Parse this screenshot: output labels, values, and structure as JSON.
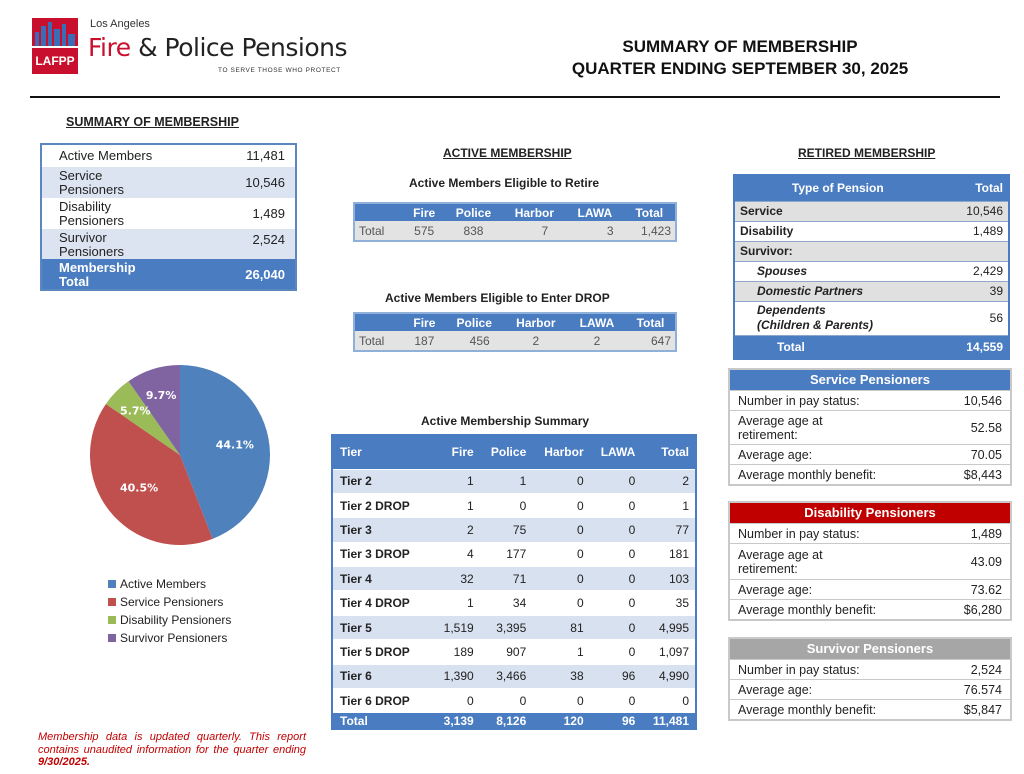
{
  "header": {
    "logo_abbr": "LAFPP",
    "logo_city": "Los Angeles",
    "logo_fire": "Fire",
    "logo_amp": "&",
    "logo_police": "Police Pensions",
    "logo_tagline": "TO SERVE THOSE WHO PROTECT",
    "title_line1": "SUMMARY OF MEMBERSHIP",
    "title_line2": "QUARTER ENDING SEPTEMBER 30, 2025"
  },
  "summary": {
    "title": "SUMMARY OF MEMBERSHIP",
    "rows": [
      {
        "label": "Active Members",
        "value": "11,481"
      },
      {
        "label": "Service Pensioners",
        "value": "10,546"
      },
      {
        "label": "Disability Pensioners",
        "value": "1,489"
      },
      {
        "label": "Survivor Pensioners",
        "value": "2,524"
      }
    ],
    "total_label": "Membership Total",
    "total_value": "26,040"
  },
  "chart_data": {
    "type": "pie",
    "title": "",
    "categories": [
      "Active Members",
      "Service Pensioners",
      "Disability Pensioners",
      "Survivor Pensioners"
    ],
    "values": [
      44.1,
      40.5,
      5.7,
      9.7
    ],
    "labels": [
      "44.1%",
      "40.5%",
      "5.7%",
      "9.7%"
    ],
    "colors": [
      "#4f81bd",
      "#c0504d",
      "#9bbb59",
      "#8064a2"
    ],
    "legend": "bottom-left"
  },
  "active": {
    "title": "ACTIVE MEMBERSHIP",
    "retire": {
      "subtitle": "Active Members Eligible to Retire",
      "headers": [
        "",
        "Fire",
        "Police",
        "Harbor",
        "LAWA",
        "Total"
      ],
      "row": [
        "Total",
        "575",
        "838",
        "7",
        "3",
        "1,423"
      ]
    },
    "drop": {
      "subtitle": "Active Members Eligible to Enter DROP",
      "headers": [
        "",
        "Fire",
        "Police",
        "Harbor",
        "LAWA",
        "Total"
      ],
      "row": [
        "Total",
        "187",
        "456",
        "2",
        "2",
        "647"
      ]
    },
    "summary": {
      "subtitle": "Active Membership Summary",
      "headers": [
        "Tier",
        "Fire",
        "Police",
        "Harbor",
        "LAWA",
        "Total"
      ],
      "rows": [
        [
          "Tier 2",
          "1",
          "1",
          "0",
          "0",
          "2"
        ],
        [
          "Tier 2 DROP",
          "1",
          "0",
          "0",
          "0",
          "1"
        ],
        [
          "Tier 3",
          "2",
          "75",
          "0",
          "0",
          "77"
        ],
        [
          "Tier 3 DROP",
          "4",
          "177",
          "0",
          "0",
          "181"
        ],
        [
          "Tier 4",
          "32",
          "71",
          "0",
          "0",
          "103"
        ],
        [
          "Tier 4 DROP",
          "1",
          "34",
          "0",
          "0",
          "35"
        ],
        [
          "Tier 5",
          "1,519",
          "3,395",
          "81",
          "0",
          "4,995"
        ],
        [
          "Tier 5 DROP",
          "189",
          "907",
          "1",
          "0",
          "1,097"
        ],
        [
          "Tier 6",
          "1,390",
          "3,466",
          "38",
          "96",
          "4,990"
        ],
        [
          "Tier 6 DROP",
          "0",
          "0",
          "0",
          "0",
          "0"
        ]
      ],
      "total": [
        "Total",
        "3,139",
        "8,126",
        "120",
        "96",
        "11,481"
      ]
    }
  },
  "retired": {
    "title": "RETIRED MEMBERSHIP",
    "headers": [
      "Type of Pension",
      "Total"
    ],
    "service": [
      "Service",
      "10,546"
    ],
    "disability": [
      "Disability",
      "1,489"
    ],
    "survivor_label": "Survivor:",
    "spouses": [
      "Spouses",
      "2,429"
    ],
    "partners": [
      "Domestic Partners",
      "39"
    ],
    "dependents_l1": "Dependents",
    "dependents_l2": "(Children & Parents)",
    "dependents_value": "56",
    "total": [
      "Total",
      "14,559"
    ]
  },
  "service_pensioners": {
    "title": "Service Pensioners",
    "color": "#4a7cc1",
    "pay_status": [
      "Number in pay status:",
      "10,546"
    ],
    "age_ret_l1": "Average age at",
    "age_ret_l2": "retirement:",
    "age_ret_value": "52.58",
    "avg_age": [
      "Average age:",
      "70.05"
    ],
    "benefit": [
      "Average monthly benefit:",
      "$8,443"
    ]
  },
  "disability_pensioners": {
    "title": "Disability Pensioners",
    "color": "#c00000",
    "pay_status": [
      "Number in pay status:",
      "1,489"
    ],
    "age_ret_l1": "Average age at",
    "age_ret_l2": "retirement:",
    "age_ret_value": "43.09",
    "avg_age": [
      "Average age:",
      "73.62"
    ],
    "benefit": [
      "Average monthly benefit:",
      "$6,280"
    ]
  },
  "survivor_pensioners": {
    "title": "Survivor Pensioners",
    "color": "#a6a6a6",
    "pay_status": [
      "Number in pay status:",
      "2,524"
    ],
    "avg_age": [
      "Average age:",
      "76.574"
    ],
    "benefit": [
      "Average monthly benefit:",
      "$5,847"
    ]
  },
  "footnote": {
    "text": "Membership data is updated quarterly. This report contains unaudited information for the quarter ending ",
    "date": "9/30/2025."
  }
}
